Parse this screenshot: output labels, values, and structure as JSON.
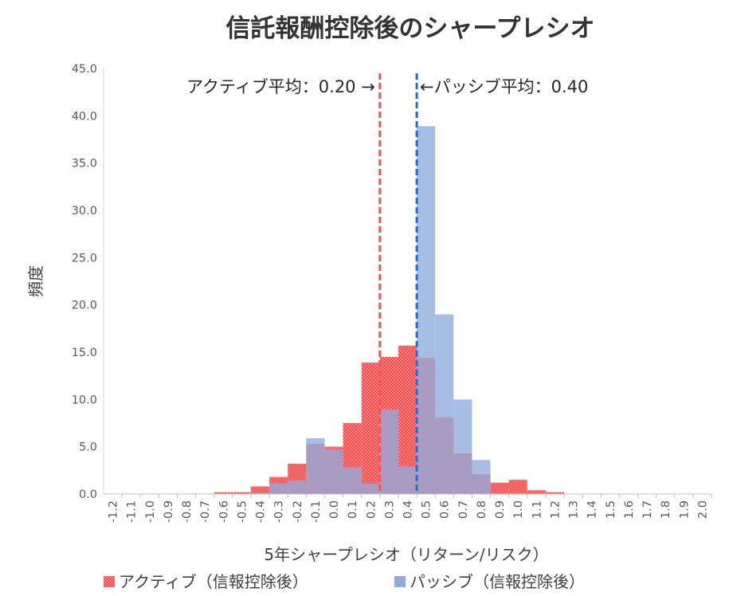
{
  "chart_data": {
    "type": "bar",
    "title": "信託報酬控除後のシャープレシオ",
    "xlabel": "5年シャープレシオ（リターン/リスク）",
    "ylabel": "頻度",
    "ylim": [
      0,
      45
    ],
    "yticks": [
      "0.0",
      "5.0",
      "10.0",
      "15.0",
      "20.0",
      "25.0",
      "30.0",
      "35.0",
      "40.0",
      "45.0"
    ],
    "categories": [
      "-1.2",
      "-1.1",
      "-1.0",
      "-0.9",
      "-0.8",
      "-0.7",
      "-0.6",
      "-0.5",
      "-0.4",
      "-0.3",
      "-0.2",
      "-0.1",
      "0.0",
      "0.1",
      "0.2",
      "0.3",
      "0.4",
      "0.5",
      "0.6",
      "0.7",
      "0.8",
      "0.9",
      "1.0",
      "1.1",
      "1.2",
      "1.3",
      "1.4",
      "1.5",
      "1.6",
      "1.7",
      "1.8",
      "1.9",
      "2.0"
    ],
    "series": [
      {
        "name": "アクティブ（信報控除後）",
        "color": "#ff6666",
        "values": [
          0,
          0,
          0,
          0,
          0,
          0,
          0.2,
          0.2,
          0.8,
          1.8,
          3.2,
          5.3,
          5.0,
          7.5,
          13.9,
          14.5,
          15.7,
          14.4,
          8.1,
          4.3,
          2.1,
          1.2,
          1.5,
          0.4,
          0.2,
          0,
          0,
          0,
          0,
          0,
          0,
          0,
          0
        ]
      },
      {
        "name": "パッシブ（信報控除後）",
        "color": "#8faadc",
        "values": [
          0,
          0,
          0,
          0,
          0,
          0,
          0,
          0,
          0.1,
          1.1,
          1.4,
          5.9,
          4.7,
          2.8,
          1.1,
          8.9,
          2.9,
          38.9,
          19.0,
          10.0,
          3.6,
          0,
          0,
          0,
          0,
          0,
          0,
          0,
          0,
          0,
          0,
          0,
          0
        ]
      }
    ],
    "reference_lines": [
      {
        "value": 0.2,
        "label": "アクティブ平均：0.20 →",
        "color": "#ff5050",
        "style": "dashed"
      },
      {
        "value": 0.4,
        "label": "←パッシブ平均：0.40",
        "color": "#1f6fd0",
        "style": "dashed"
      }
    ],
    "grid": false,
    "legend_position": "bottom"
  }
}
